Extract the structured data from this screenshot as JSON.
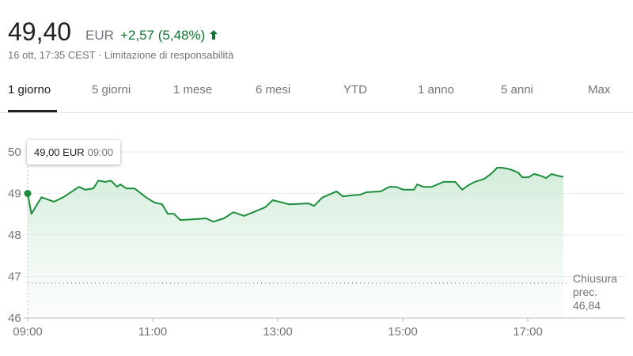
{
  "header": {
    "price": "49,40",
    "currency": "EUR",
    "change": "+2,57 (5,48%)",
    "timestamp": "16 ott, 17:35 CEST",
    "disclaimer": "Limitazione di responsabilità",
    "tabs": [
      "1 giorno",
      "5 giorni",
      "1 mese",
      "6 mesi",
      "YTD",
      "1 anno",
      "5 anni",
      "Max"
    ]
  },
  "chart_data": {
    "type": "line",
    "color": "#1e8e3e",
    "grid": true,
    "x": [
      9.0,
      9.06,
      9.22,
      9.42,
      9.57,
      9.82,
      9.92,
      10.05,
      10.13,
      10.24,
      10.33,
      10.43,
      10.48,
      10.58,
      10.71,
      10.9,
      11.03,
      11.15,
      11.24,
      11.34,
      11.44,
      11.66,
      11.85,
      11.97,
      12.14,
      12.29,
      12.46,
      12.61,
      12.8,
      12.92,
      13.18,
      13.49,
      13.58,
      13.71,
      13.94,
      14.04,
      14.14,
      14.32,
      14.42,
      14.65,
      14.78,
      14.89,
      15.01,
      15.18,
      15.23,
      15.33,
      15.46,
      15.56,
      15.65,
      15.84,
      15.95,
      16.05,
      16.15,
      16.3,
      16.41,
      16.51,
      16.59,
      16.72,
      16.85,
      16.91,
      17.01,
      17.1,
      17.2,
      17.29,
      17.38,
      17.47,
      17.57
    ],
    "values": [
      49.0,
      48.51,
      48.91,
      48.8,
      48.91,
      49.16,
      49.09,
      49.12,
      49.31,
      49.28,
      49.31,
      49.16,
      49.22,
      49.12,
      49.12,
      48.9,
      48.78,
      48.74,
      48.51,
      48.51,
      48.36,
      48.38,
      48.4,
      48.32,
      48.4,
      48.55,
      48.46,
      48.55,
      48.67,
      48.84,
      48.74,
      48.76,
      48.7,
      48.9,
      49.05,
      48.93,
      48.95,
      48.97,
      49.03,
      49.05,
      49.16,
      49.16,
      49.09,
      49.09,
      49.22,
      49.16,
      49.16,
      49.22,
      49.28,
      49.28,
      49.09,
      49.2,
      49.28,
      49.35,
      49.47,
      49.62,
      49.62,
      49.58,
      49.5,
      49.39,
      49.39,
      49.47,
      49.43,
      49.37,
      49.47,
      49.43,
      49.4
    ],
    "xlim": [
      9,
      17.67
    ],
    "ylim": [
      46,
      50.23
    ],
    "xticks": [
      {
        "value": 9,
        "label": "09:00"
      },
      {
        "value": 11,
        "label": "11:00"
      },
      {
        "value": 13,
        "label": "13:00"
      },
      {
        "value": 15,
        "label": "15:00"
      },
      {
        "value": 17,
        "label": "17:00"
      }
    ],
    "yticks": [
      46,
      47,
      48,
      49,
      50
    ],
    "reference_line": {
      "value": 46.84,
      "label": "Chiusura prec.",
      "value_label": "46,84"
    },
    "tooltip": {
      "value": 49.0,
      "value_label": "49,00 EUR",
      "time": "09:00"
    }
  }
}
